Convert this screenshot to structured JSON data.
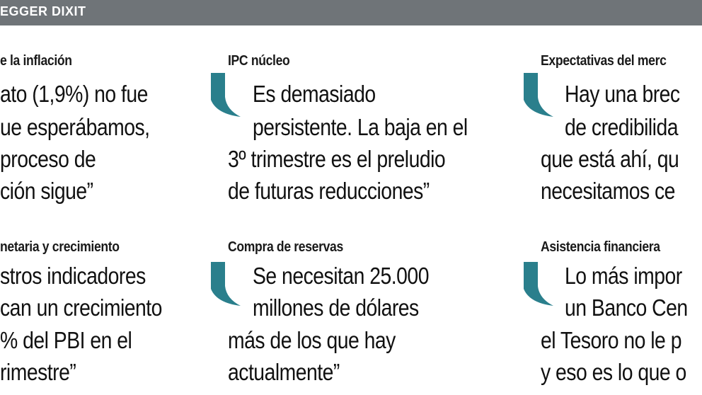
{
  "header": {
    "title": "EGGER DIXIT",
    "bar_color": "#6f7478"
  },
  "accent_color": "#2a7f8c",
  "quotes": [
    {
      "topic": "e la inflación",
      "lines": [
        "ato (1,9%) no fue",
        "ue esperábamos,",
        "proceso de",
        "ción sigue”"
      ]
    },
    {
      "topic": "IPC núcleo",
      "lines": [
        "Es demasiado",
        "persistente. La baja en el",
        "3º trimestre es el preludio",
        "de futuras reducciones”"
      ]
    },
    {
      "topic": "Expectativas del merc",
      "lines": [
        "Hay una brec",
        "de credibilida",
        "que está ahí, qu",
        "necesitamos ce"
      ]
    },
    {
      "topic": "netaria y crecimiento",
      "lines": [
        "stros indicadores",
        "can un crecimiento",
        "% del PBI en el",
        "rimestre”"
      ]
    },
    {
      "topic": "Compra de reservas",
      "lines": [
        "Se necesitan 25.000",
        "millones de dólares",
        "más de los que hay",
        "actualmente”"
      ]
    },
    {
      "topic": "Asistencia financiera",
      "lines": [
        "Lo más impor",
        "un Banco Cen",
        "el Tesoro no le p",
        "y eso es lo que o"
      ]
    }
  ]
}
